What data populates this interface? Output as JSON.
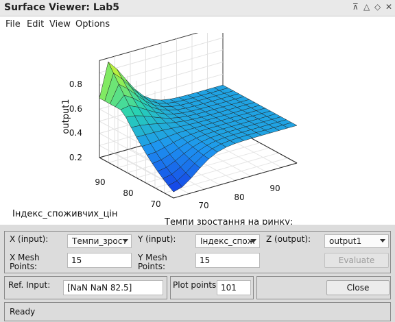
{
  "window": {
    "title": "Surface Viewer: Lab5"
  },
  "title_controls": {
    "pin": "⊼",
    "shade": "△",
    "maximize": "◇",
    "close": "✕"
  },
  "menu": [
    "File",
    "Edit",
    "View",
    "Options"
  ],
  "plot": {
    "zlabel": "output1",
    "z_ticks": [
      "0.8",
      "0.6",
      "0.4",
      "0.2"
    ],
    "y_ticks": [
      "90",
      "80",
      "70"
    ],
    "x_ticks": [
      "70",
      "80",
      "90"
    ],
    "ylabel": "Індекс_споживчих_цін",
    "xlabel": "Темпи зростання на ринку:"
  },
  "controls": {
    "x_input_label": "X (input):",
    "x_input_value": "Темпи_зрост",
    "y_input_label": "Y (input):",
    "y_input_value": "Індекс_спож",
    "z_output_label": "Z (output):",
    "z_output_value": "output1",
    "x_mesh_label": "X Mesh Points:",
    "x_mesh_value": "15",
    "y_mesh_label": "Y Mesh Points:",
    "y_mesh_value": "15",
    "evaluate_label": "Evaluate",
    "ref_input_label": "Ref. Input:",
    "ref_input_value": "[NaN NaN 82.5]",
    "plot_points_label": "Plot points:",
    "plot_points_value": "101",
    "close_label": "Close"
  },
  "status": "Ready"
}
